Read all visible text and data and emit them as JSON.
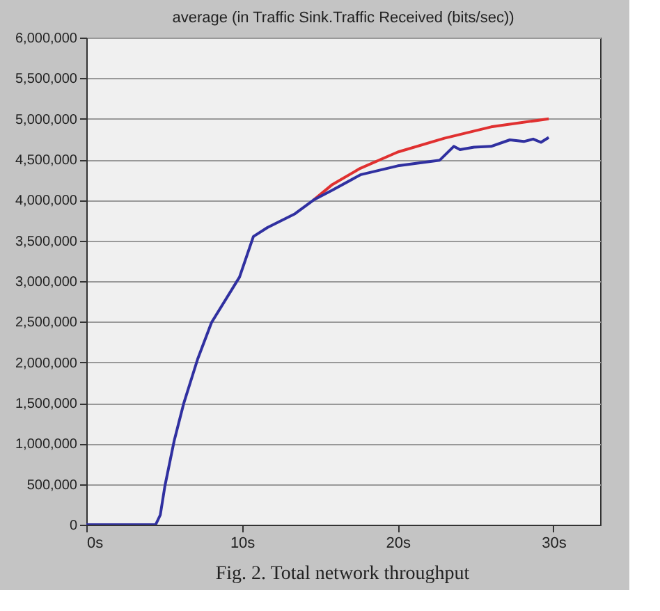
{
  "chart_data": {
    "type": "line",
    "title": "average (in Traffic Sink.Traffic Received (bits/sec))",
    "annotations": [
      "Fig. 2.   Total network throughput"
    ],
    "xlim": [
      0,
      33
    ],
    "xticks": [
      {
        "value": 0,
        "label": "0s"
      },
      {
        "value": 10,
        "label": "10s"
      },
      {
        "value": 20,
        "label": "20s"
      },
      {
        "value": 30,
        "label": "30s"
      }
    ],
    "ylim": [
      0,
      6000000
    ],
    "yticks": [
      {
        "value": 0,
        "label": "0"
      },
      {
        "value": 500000,
        "label": "500,000"
      },
      {
        "value": 1000000,
        "label": "1,000,000"
      },
      {
        "value": 1500000,
        "label": "1,500,000"
      },
      {
        "value": 2000000,
        "label": "2,000,000"
      },
      {
        "value": 2500000,
        "label": "2,500,000"
      },
      {
        "value": 3000000,
        "label": "3,000,000"
      },
      {
        "value": 3500000,
        "label": "3,500,000"
      },
      {
        "value": 4000000,
        "label": "4,000,000"
      },
      {
        "value": 4500000,
        "label": "4,500,000"
      },
      {
        "value": 5000000,
        "label": "5,000,000"
      },
      {
        "value": 5500000,
        "label": "5,500,000"
      },
      {
        "value": 6000000,
        "label": "6,000,000"
      }
    ],
    "grid": "y",
    "marker": "none",
    "line_style": "solid",
    "series": [
      {
        "color": "#e03030",
        "x": [
          14.6,
          15.8,
          17.6,
          20.0,
          23.0,
          26.0,
          29.7
        ],
        "values": [
          4000000,
          4190000,
          4390000,
          4590000,
          4760000,
          4900000,
          5000000
        ]
      },
      {
        "color": "#3030a0",
        "x": [
          0,
          4.45,
          4.75,
          5.05,
          5.65,
          6.25,
          7.15,
          8.04,
          9.84,
          10.73,
          11.63,
          13.4,
          14.6,
          15.8,
          17.6,
          20.0,
          22.7,
          23.6,
          24.0,
          24.9,
          26.0,
          27.2,
          28.1,
          28.7,
          29.2,
          29.7
        ],
        "values": [
          0,
          0,
          120000,
          480000,
          1040000,
          1490000,
          2040000,
          2490000,
          3050000,
          3550000,
          3660000,
          3830000,
          4000000,
          4120000,
          4310000,
          4420000,
          4490000,
          4660000,
          4620000,
          4650000,
          4660000,
          4740000,
          4720000,
          4750000,
          4710000,
          4770000
        ]
      }
    ]
  }
}
